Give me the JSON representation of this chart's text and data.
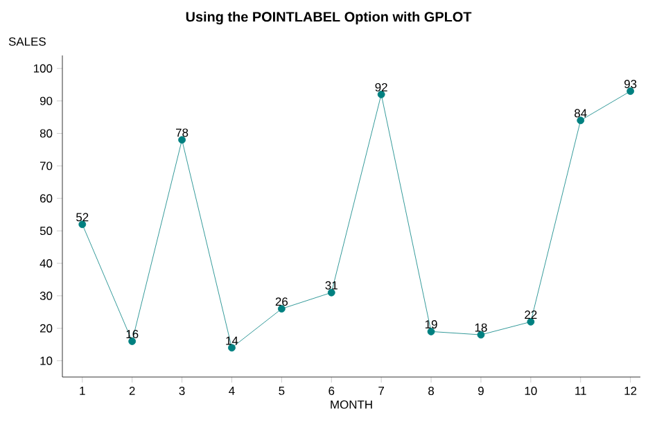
{
  "chart_data": {
    "type": "line",
    "title": "Using the POINTLABEL Option with GPLOT",
    "xlabel": "MONTH",
    "ylabel": "SALES",
    "x": [
      1,
      2,
      3,
      4,
      5,
      6,
      7,
      8,
      9,
      10,
      11,
      12
    ],
    "values": [
      52,
      16,
      78,
      14,
      26,
      31,
      92,
      19,
      18,
      22,
      84,
      93
    ],
    "color": "#008080",
    "marker": "circle",
    "data_labels": true,
    "grid": false,
    "xlim": [
      0.6,
      12.2
    ],
    "xticks": [
      1,
      2,
      3,
      4,
      5,
      6,
      7,
      8,
      9,
      10,
      11,
      12
    ],
    "ylim": [
      5,
      104
    ],
    "yticks": [
      10,
      20,
      30,
      40,
      50,
      60,
      70,
      80,
      90,
      100
    ]
  }
}
